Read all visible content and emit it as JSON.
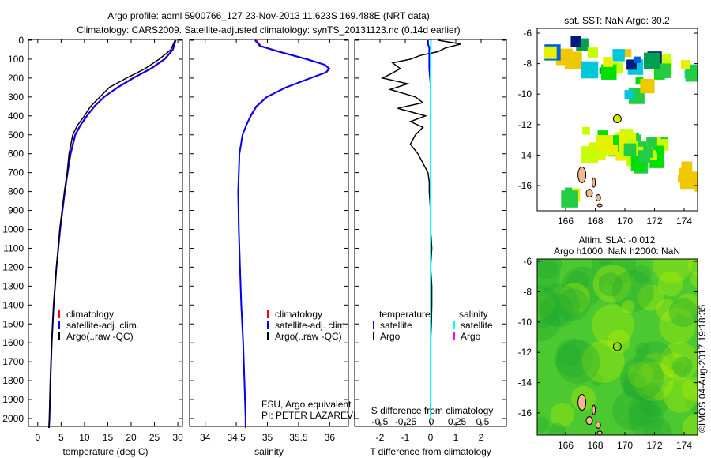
{
  "title_line1": "Argo profile: aoml 5900766_127 23-Nov-2013 11.623S 169.488E (NRT data)",
  "title_line2": "Climatology: CARS2009. Satellite-adjusted climatology: synTS_20131123.nc (0.14d earlier)",
  "colors": {
    "climatology": "#ff0000",
    "satellite": "#0000ff",
    "argo": "#000000",
    "sal_satellite": "#00ffff",
    "sal_argo": "#ff00ff",
    "land": "#f0b88c"
  },
  "chart_data": [
    {
      "type": "line",
      "name": "temperature-panel",
      "xlabel": "temperature (deg C)",
      "xlim": [
        -2,
        31
      ],
      "ylim": [
        2050,
        0
      ],
      "xticks": [
        "0",
        "5",
        "10",
        "15",
        "20",
        "25",
        "30"
      ],
      "xtick_values": [
        0,
        5,
        10,
        15,
        20,
        25,
        30
      ],
      "yticks": [
        "0",
        "100",
        "200",
        "300",
        "400",
        "500",
        "600",
        "700",
        "800",
        "900",
        "1000",
        "1100",
        "1200",
        "1300",
        "1400",
        "1500",
        "1600",
        "1700",
        "1800",
        "1900",
        "2000"
      ],
      "depth": [
        0,
        50,
        100,
        150,
        200,
        250,
        300,
        350,
        400,
        450,
        500,
        600,
        700,
        800,
        1000,
        1200,
        1400,
        1600,
        1800,
        2000,
        2050
      ],
      "series": [
        {
          "name": "climatology",
          "values": [
            29.6,
            29.0,
            27.3,
            24.4,
            20.6,
            17.2,
            14.3,
            12.2,
            10.6,
            9.2,
            8.1,
            7.1,
            6.4,
            5.8,
            4.8,
            4.0,
            3.4,
            3.0,
            2.7,
            2.5,
            2.4
          ]
        },
        {
          "name": "satellite-adj. clim.",
          "values": [
            29.5,
            28.9,
            27.1,
            24.2,
            20.4,
            17.0,
            14.2,
            12.1,
            10.5,
            9.1,
            8.0,
            7.0,
            6.4,
            5.8,
            4.8,
            4.0,
            3.4,
            3.0,
            2.7,
            2.5,
            2.4
          ]
        },
        {
          "name": "Argo(..raw -QC)",
          "values": [
            29.4,
            28.5,
            26.0,
            23.0,
            19.0,
            15.3,
            13.3,
            11.3,
            10.0,
            8.5,
            7.5,
            6.7,
            6.3,
            5.7,
            4.7,
            4.0,
            3.4,
            3.0,
            2.7,
            2.5,
            2.4
          ]
        }
      ],
      "legend": [
        "climatology",
        "satellite-adj. clim.",
        "Argo(..raw -QC)"
      ]
    },
    {
      "type": "line",
      "name": "salinity-panel",
      "xlabel": "salinity",
      "xlim": [
        33.75,
        36.3
      ],
      "ylim": [
        2050,
        0
      ],
      "xticks": [
        "34",
        "34.5",
        "35",
        "35.5",
        "36"
      ],
      "xtick_values": [
        34,
        34.5,
        35,
        35.5,
        36
      ],
      "depth": [
        0,
        30,
        60,
        100,
        130,
        150,
        170,
        200,
        250,
        300,
        350,
        400,
        450,
        500,
        600,
        800,
        1000,
        1200,
        1400,
        1600,
        1800,
        2000,
        2050
      ],
      "series": [
        {
          "name": "climatology",
          "values": [
            34.82,
            34.9,
            35.2,
            35.65,
            35.93,
            36.0,
            35.95,
            35.7,
            35.3,
            35.0,
            34.83,
            34.74,
            34.66,
            34.6,
            34.55,
            34.53,
            34.54,
            34.56,
            34.58,
            34.61,
            34.63,
            34.65,
            34.65
          ]
        },
        {
          "name": "satellite-adj. clim.",
          "values": [
            34.8,
            34.88,
            35.18,
            35.63,
            35.92,
            35.99,
            35.94,
            35.69,
            35.29,
            34.99,
            34.82,
            34.73,
            34.66,
            34.6,
            34.55,
            34.53,
            34.54,
            34.56,
            34.58,
            34.61,
            34.63,
            34.65,
            34.65
          ]
        }
      ],
      "legend": [
        "climatology",
        "satellite-adj. clim.",
        "Argo(..raw -QC)"
      ],
      "annotation": [
        "FSU, Argo equivalent",
        "PI: PETER LAZAREVICH"
      ]
    },
    {
      "type": "line",
      "name": "difference-panel",
      "xlabel": "T difference from climatology",
      "xlabel2": "S difference from climatology",
      "xlim": [
        -3,
        3
      ],
      "ylim": [
        2050,
        0
      ],
      "xticks": [
        "-2",
        "-1",
        "0",
        "1",
        "2"
      ],
      "xtick_values": [
        -2,
        -1,
        0,
        1,
        2
      ],
      "xticks2": [
        "-0.5",
        "-0.25",
        "0",
        "0.25",
        "0.5"
      ],
      "xtick2_values": [
        -0.5,
        -0.25,
        0,
        0.25,
        0.5
      ],
      "depth": [
        0,
        20,
        40,
        60,
        80,
        100,
        120,
        150,
        180,
        200,
        230,
        260,
        300,
        330,
        360,
        400,
        430,
        460,
        500,
        550,
        600,
        650,
        700,
        750,
        800,
        900,
        1000,
        1100,
        1200,
        1300,
        1400,
        1500,
        1600,
        1800,
        2000
      ],
      "series": [
        {
          "name": "T satellite",
          "values": [
            -0.1,
            -0.1,
            -0.05,
            -0.05,
            -0.05,
            -0.05,
            -0.05,
            -0.05,
            -0.03,
            -0.02,
            0,
            0,
            0,
            0,
            0,
            0,
            0,
            0,
            0,
            0,
            0,
            0,
            0,
            0,
            0,
            0,
            0,
            0,
            0,
            0,
            0,
            0,
            0,
            0,
            0
          ]
        },
        {
          "name": "T Argo",
          "values": [
            0.3,
            1.2,
            0.6,
            0.3,
            -0.4,
            -0.8,
            -1.5,
            -1.2,
            -1.6,
            -1.9,
            -0.9,
            -1.6,
            -0.6,
            -0.3,
            -1.3,
            -0.2,
            -0.8,
            -0.3,
            -0.6,
            -0.8,
            -0.5,
            -0.3,
            -0.1,
            -0.05,
            -0.05,
            0,
            0,
            0.05,
            0,
            0.05,
            0.05,
            0.03,
            0,
            0,
            0
          ]
        },
        {
          "name": "S satellite",
          "values": [
            0.02,
            0.01,
            0.01,
            0,
            0,
            0,
            0,
            0,
            0,
            0,
            0,
            0,
            0,
            0,
            0,
            0,
            0,
            0,
            0,
            0,
            0,
            0,
            0,
            0,
            0,
            0,
            0,
            0,
            0,
            0,
            0,
            0,
            0,
            0,
            0
          ]
        }
      ],
      "legend": {
        "temperature": "temperature",
        "salinity": "salinity",
        "items": [
          "satellite",
          "Argo"
        ]
      }
    }
  ],
  "map1": {
    "title": "sat. SST: NaN Argo: 30.2",
    "xticks": [
      "166",
      "168",
      "170",
      "172",
      "174"
    ],
    "yticks": [
      "-6",
      "-8",
      "-10",
      "-12",
      "-14",
      "-16"
    ],
    "profile_lon": 169.488,
    "profile_lat": -11.623
  },
  "map2": {
    "title1": "Altim. SLA: -0.012",
    "title2": "Argo h1000: NaN h2000: NaN",
    "xticks": [
      "166",
      "168",
      "170",
      "172",
      "174"
    ],
    "yticks": [
      "-6",
      "-8",
      "-10",
      "-12",
      "-14",
      "-16"
    ]
  },
  "footer": "©IMOS 04-Aug-2017 19:18:35"
}
